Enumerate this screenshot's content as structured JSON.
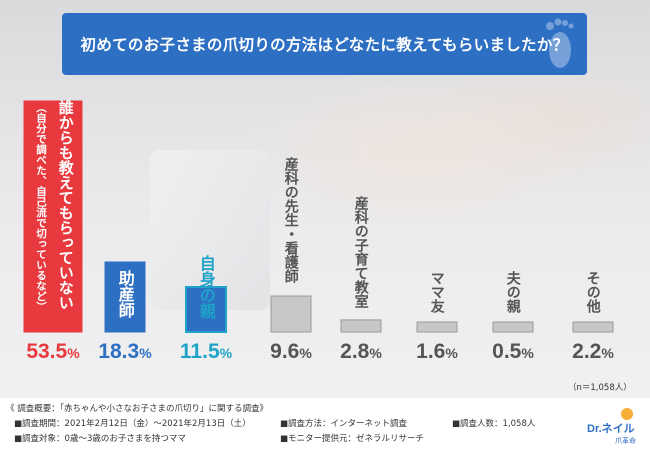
{
  "title": "初めてのお子さまの爪切りの方法はどなたに教えてもらいましたか？",
  "n_note": "（n＝1,058人）",
  "footer": {
    "overview": "《 調査概要：「赤ちゃんや小さなお子さまの爪切り」に関する調査》",
    "period": "■調査期間：2021年2月12日（金）〜2021年2月13日（土）",
    "method": "■調査方法：インターネット調査",
    "count": "■調査人数：1,058人",
    "target": "■調査対象：0歳〜3歳のお子さまを持つママ",
    "provider": "■モニター提供元：ゼネラルリサーチ"
  },
  "logo": {
    "text": "Dr.ネイル",
    "sub": "爪革命"
  },
  "chart_data": {
    "type": "bar",
    "categories": [
      "誰からも教えてもらっていない",
      "助産師",
      "自身の親",
      "産科の先生・看護師",
      "産科の子育て教室",
      "ママ友",
      "夫の親",
      "その他"
    ],
    "sublabels": [
      "（自分で調べた、自己流で切っているなど）",
      "",
      "",
      "",
      "",
      "",
      "",
      ""
    ],
    "values": [
      53.5,
      18.3,
      11.5,
      9.6,
      2.8,
      1.6,
      0.5,
      2.2
    ],
    "value_text": [
      "53.5",
      "18.3",
      "11.5",
      "9.6",
      "2.8",
      "1.6",
      "0.5",
      "2.2"
    ],
    "unit": "%",
    "title": "初めてのお子さまの爪切りの方法はどなたに教えてもらいましたか？",
    "ylim": [
      0,
      53.5
    ],
    "colors": {
      "bar_fill": [
        "#e83a3e",
        "#2d6fc3",
        "#2d6fc3",
        "#c7c7c7",
        "#c7c7c7",
        "#c7c7c7",
        "#c7c7c7",
        "#c7c7c7"
      ],
      "bar_border": [
        "#e83a3e",
        "#2d6fc3",
        "#1fa3c8",
        "#9a9a9a",
        "#9a9a9a",
        "#9a9a9a",
        "#9a9a9a",
        "#9a9a9a"
      ],
      "label_color": [
        "#ffffff",
        "#ffffff",
        "#1fa3c8",
        "#555555",
        "#555555",
        "#555555",
        "#555555",
        "#555555"
      ],
      "pct_color": [
        "#e83a3e",
        "#2d6fc3",
        "#1fa3c8",
        "#555555",
        "#555555",
        "#555555",
        "#555555",
        "#555555"
      ]
    },
    "grid": false,
    "legend": "none"
  }
}
